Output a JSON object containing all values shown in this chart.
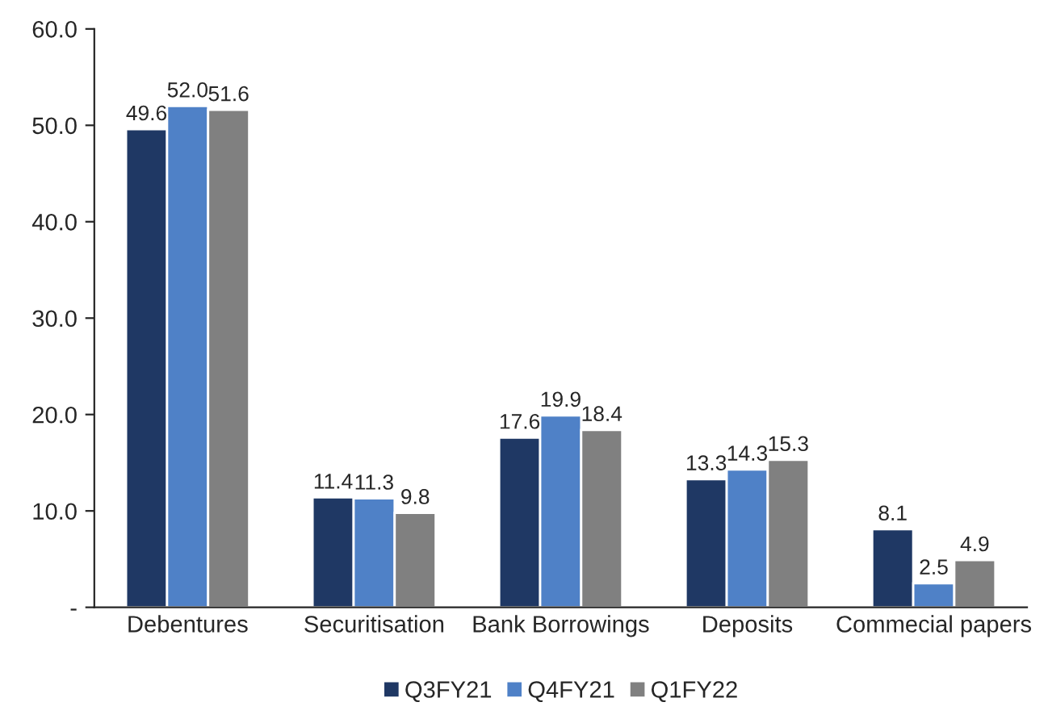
{
  "chart_data": {
    "type": "bar",
    "categories": [
      "Debentures",
      "Securitisation",
      "Bank Borrowings",
      "Deposits",
      "Commecial papers"
    ],
    "series": [
      {
        "name": "Q3FY21",
        "color": "#1f3864",
        "values": [
          49.6,
          11.4,
          17.6,
          13.3,
          8.1
        ],
        "value_labels": [
          "49.6",
          "11.4",
          "17.6",
          "13.3",
          "8.1"
        ]
      },
      {
        "name": "Q4FY21",
        "color": "#4f81c7",
        "values": [
          52.0,
          11.3,
          19.9,
          14.3,
          2.5
        ],
        "value_labels": [
          "52.0",
          "11.3",
          "19.9",
          "14.3",
          "2.5"
        ]
      },
      {
        "name": "Q1FY22",
        "color": "#808080",
        "values": [
          51.6,
          9.8,
          18.4,
          15.3,
          4.9
        ],
        "value_labels": [
          "51.6",
          "9.8",
          "18.4",
          "15.3",
          "4.9"
        ]
      }
    ],
    "ylim": [
      0,
      60
    ],
    "yticks": [
      {
        "value": 0,
        "label": "-"
      },
      {
        "value": 10,
        "label": "10.0"
      },
      {
        "value": 20,
        "label": "20.0"
      },
      {
        "value": 30,
        "label": "30.0"
      },
      {
        "value": 40,
        "label": "40.0"
      },
      {
        "value": 50,
        "label": "50.0"
      },
      {
        "value": 60,
        "label": "60.0"
      }
    ],
    "grid": false,
    "legend": "bottom"
  }
}
